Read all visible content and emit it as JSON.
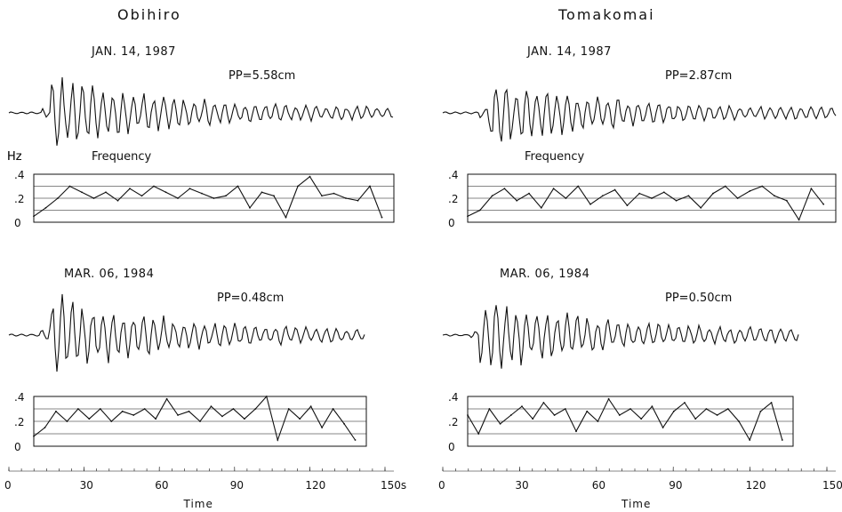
{
  "chart_data": [
    {
      "type": "line",
      "site": "Obihiro",
      "date": "JAN. 14, 1987",
      "pp": "PP=5.58cm",
      "ylabel": "Hz",
      "frequency_label": "Frequency",
      "yticks": [
        ".4",
        ".2",
        "0"
      ],
      "ylim": [
        0,
        0.4
      ],
      "xlim": [
        0,
        150
      ],
      "frequency_series": {
        "x": [
          0,
          5,
          10,
          15,
          20,
          25,
          30,
          35,
          40,
          45,
          50,
          55,
          60,
          65,
          70,
          75,
          80,
          85,
          90,
          95,
          100,
          105,
          110,
          115,
          120,
          125,
          130,
          135,
          140,
          145
        ],
        "y": [
          0.05,
          0.12,
          0.2,
          0.3,
          0.25,
          0.2,
          0.25,
          0.18,
          0.28,
          0.22,
          0.3,
          0.25,
          0.2,
          0.28,
          0.24,
          0.2,
          0.22,
          0.3,
          0.12,
          0.25,
          0.22,
          0.04,
          0.3,
          0.38,
          0.22,
          0.24,
          0.2,
          0.18,
          0.3,
          0.04
        ]
      }
    },
    {
      "type": "line",
      "site": "Tomakomai",
      "date": "JAN. 14, 1987",
      "pp": "PP=2.87cm",
      "ylabel": "Hz",
      "frequency_label": "Frequency",
      "yticks": [
        ".4",
        ".2",
        "0"
      ],
      "ylim": [
        0,
        0.4
      ],
      "xlim": [
        0,
        150
      ],
      "frequency_series": {
        "x": [
          0,
          5,
          10,
          15,
          20,
          25,
          30,
          35,
          40,
          45,
          50,
          55,
          60,
          65,
          70,
          75,
          80,
          85,
          90,
          95,
          100,
          105,
          110,
          115,
          120,
          125,
          130,
          135,
          140,
          145
        ],
        "y": [
          0.05,
          0.1,
          0.22,
          0.28,
          0.18,
          0.24,
          0.12,
          0.28,
          0.2,
          0.3,
          0.15,
          0.22,
          0.27,
          0.14,
          0.24,
          0.2,
          0.25,
          0.18,
          0.22,
          0.12,
          0.24,
          0.3,
          0.2,
          0.26,
          0.3,
          0.22,
          0.18,
          0.02,
          0.28,
          0.15
        ]
      }
    },
    {
      "type": "line",
      "site": "Obihiro",
      "date": "MAR. 06, 1984",
      "pp": "PP=0.48cm",
      "yticks": [
        ".4",
        ".2",
        "0"
      ],
      "ylim": [
        0,
        0.4
      ],
      "xlim": [
        0,
        150
      ],
      "frequency_series": {
        "x": [
          0,
          5,
          10,
          15,
          20,
          25,
          30,
          35,
          40,
          45,
          50,
          55,
          60,
          65,
          70,
          75,
          80,
          85,
          90,
          95,
          100,
          105,
          110,
          115,
          120,
          125,
          130,
          135,
          140,
          145
        ],
        "y": [
          0.08,
          0.15,
          0.28,
          0.2,
          0.3,
          0.22,
          0.3,
          0.2,
          0.28,
          0.25,
          0.3,
          0.22,
          0.38,
          0.25,
          0.28,
          0.2,
          0.32,
          0.24,
          0.3,
          0.22,
          0.3,
          0.4,
          0.05,
          0.3,
          0.22,
          0.32,
          0.15,
          0.3,
          0.18,
          0.05
        ]
      }
    },
    {
      "type": "line",
      "site": "Tomakomai",
      "date": "MAR. 06, 1984",
      "pp": "PP=0.50cm",
      "yticks": [
        ".4",
        ".2",
        "0"
      ],
      "ylim": [
        0,
        0.4
      ],
      "xlim": [
        0,
        150
      ],
      "frequency_series": {
        "x": [
          0,
          5,
          10,
          15,
          20,
          25,
          30,
          35,
          40,
          45,
          50,
          55,
          60,
          65,
          70,
          75,
          80,
          85,
          90,
          95,
          100,
          105,
          110,
          115,
          120,
          125,
          130,
          135,
          140,
          145
        ],
        "y": [
          0.25,
          0.1,
          0.3,
          0.18,
          0.25,
          0.32,
          0.22,
          0.35,
          0.25,
          0.3,
          0.12,
          0.28,
          0.2,
          0.38,
          0.25,
          0.3,
          0.22,
          0.32,
          0.15,
          0.28,
          0.35,
          0.22,
          0.3,
          0.25,
          0.3,
          0.2,
          0.05,
          0.28,
          0.35,
          0.05
        ]
      }
    }
  ],
  "time_axis": {
    "ticks": [
      "0",
      "30",
      "60",
      "90",
      "120",
      "150s"
    ],
    "title": "Time"
  }
}
